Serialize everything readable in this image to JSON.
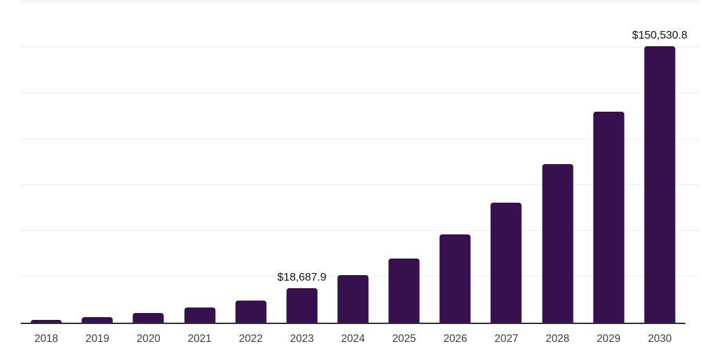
{
  "chart_data": {
    "type": "bar",
    "title": "",
    "categories": [
      "2018",
      "2019",
      "2020",
      "2021",
      "2022",
      "2023",
      "2024",
      "2025",
      "2026",
      "2027",
      "2028",
      "2029",
      "2030"
    ],
    "values": [
      1400,
      3000,
      5100,
      8200,
      11900,
      18687.9,
      25900,
      35000,
      48000,
      65200,
      86500,
      115000,
      150530.8
    ],
    "value_labels": {
      "2023": "$18,687.9",
      "2030": "$150,530.8"
    },
    "xlabel": "",
    "ylabel": "",
    "ylim": [
      0,
      175000
    ],
    "grid_step": 25000,
    "grid": true,
    "legend": false,
    "y_axis_labels_visible": false,
    "colors": {
      "bar": "#37104e",
      "grid": "#f0f0f0",
      "axis": "#303030",
      "tick_label": "#3d3d3d",
      "value_label": "#111111",
      "background": "#ffffff"
    }
  }
}
